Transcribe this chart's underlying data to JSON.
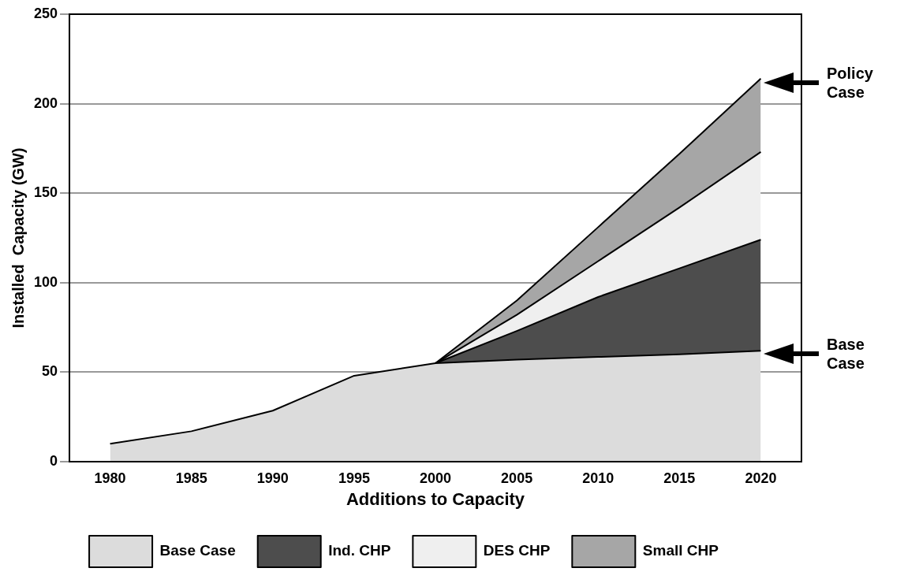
{
  "chart_data": {
    "type": "area",
    "stacked": true,
    "xlabel": "Additions to Capacity",
    "ylabel": "Installed  Capacity (GW)",
    "x": [
      1980,
      1985,
      1990,
      1995,
      2000,
      2005,
      2010,
      2015,
      2020
    ],
    "xlim": [
      1977.5,
      2022.5
    ],
    "xticks": [
      1980,
      1985,
      1990,
      1995,
      2000,
      2005,
      2010,
      2015,
      2020
    ],
    "ylim": [
      0,
      250
    ],
    "yticks": [
      0,
      50,
      100,
      150,
      200,
      250
    ],
    "grid": "y",
    "legend": "bottom",
    "series": [
      {
        "name": "Base Case",
        "color": "#dcdcdc",
        "values": [
          10,
          17,
          28.5,
          48,
          55,
          57,
          58.5,
          60,
          62
        ]
      },
      {
        "name": "Ind. CHP",
        "color": "#4d4d4d",
        "values": [
          null,
          null,
          null,
          null,
          0,
          16,
          33.5,
          48,
          62
        ]
      },
      {
        "name": "DES CHP",
        "color": "#efefef",
        "values": [
          null,
          null,
          null,
          null,
          0,
          9,
          20,
          34,
          49
        ]
      },
      {
        "name": "Small CHP",
        "color": "#a6a6a6",
        "values": [
          null,
          null,
          null,
          null,
          0,
          8,
          19,
          30,
          41
        ]
      }
    ],
    "annotations": [
      "Policy Case",
      "Base Case"
    ]
  }
}
